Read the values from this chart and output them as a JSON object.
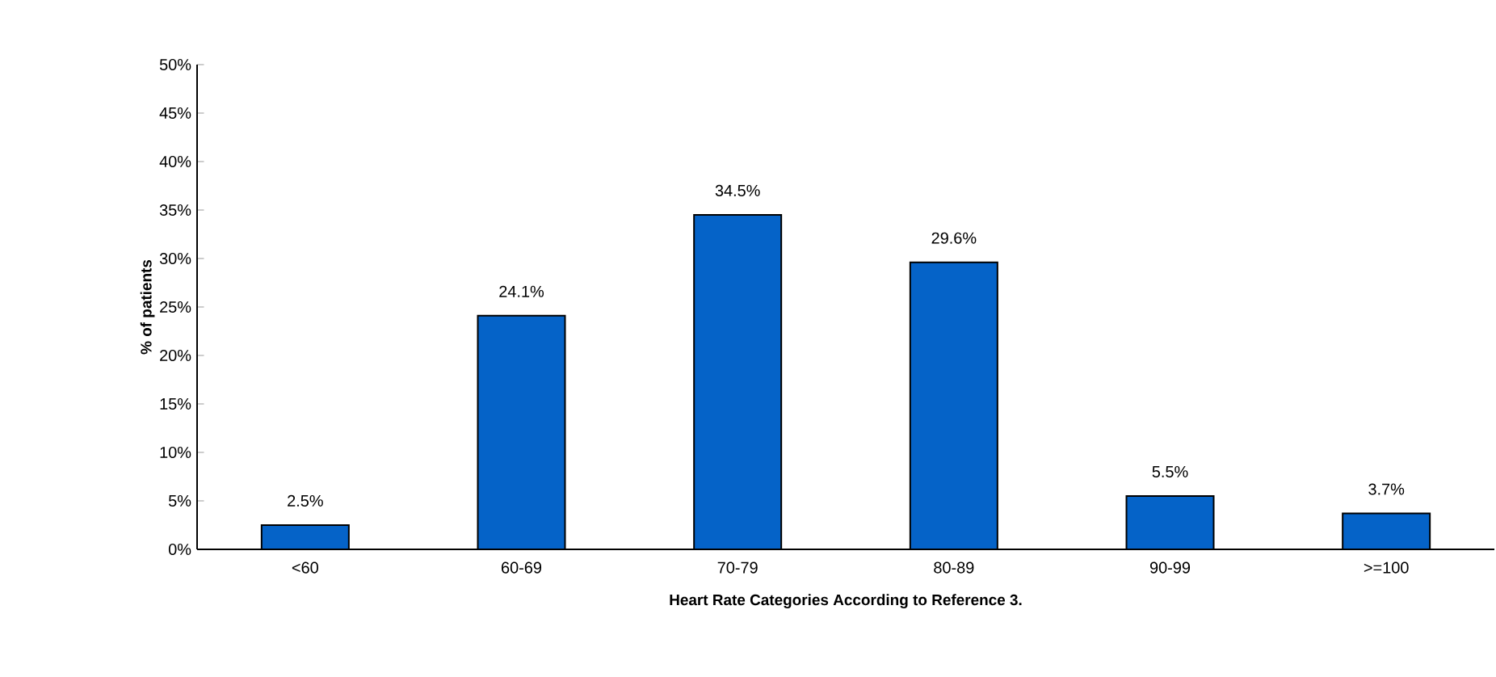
{
  "chart_data": {
    "type": "bar",
    "xlabel": "Heart Rate Categories According to Reference 3.",
    "ylabel": "% of patients",
    "categories": [
      "<60",
      "60-69",
      "70-79",
      "80-89",
      "90-99",
      ">=100"
    ],
    "values": [
      2.5,
      24.1,
      34.5,
      29.6,
      5.5,
      3.7
    ],
    "value_labels": [
      "2.5%",
      "24.1%",
      "34.5%",
      "29.6%",
      "5.5%",
      "3.7%"
    ],
    "color": "#0563c8",
    "ylim": [
      0,
      50
    ],
    "yticks": [
      {
        "value": 0,
        "label": "0%"
      },
      {
        "value": 5,
        "label": "5%"
      },
      {
        "value": 10,
        "label": "10%"
      },
      {
        "value": 15,
        "label": "15%"
      },
      {
        "value": 20,
        "label": "20%"
      },
      {
        "value": 25,
        "label": "25%"
      },
      {
        "value": 30,
        "label": "30%"
      },
      {
        "value": 35,
        "label": "35%"
      },
      {
        "value": 40,
        "label": "40%"
      },
      {
        "value": 45,
        "label": "45%"
      },
      {
        "value": 50,
        "label": "50%"
      }
    ],
    "grid": false
  }
}
